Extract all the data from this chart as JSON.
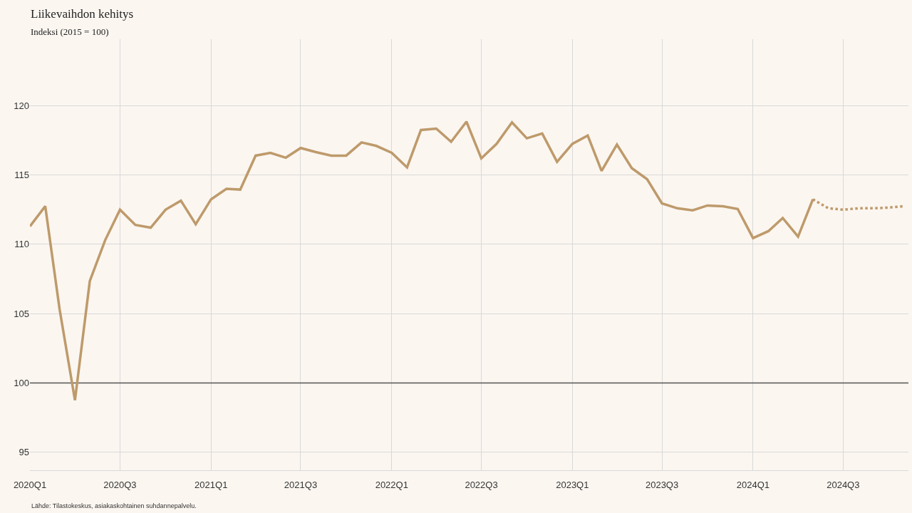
{
  "chart_data": {
    "type": "line",
    "title": "Liikevaihdon kehitys",
    "subtitle": "Indeksi (2015 = 100)",
    "annotations": [
      "Lähde: Tilastokeskus, asiakaskohtainen suhdannepalvelu."
    ],
    "x": [
      "2020-01",
      "2020-02",
      "2020-03",
      "2020-04",
      "2020-05",
      "2020-06",
      "2020-07",
      "2020-08",
      "2020-09",
      "2020-10",
      "2020-11",
      "2020-12",
      "2021-01",
      "2021-02",
      "2021-03",
      "2021-04",
      "2021-05",
      "2021-06",
      "2021-07",
      "2021-08",
      "2021-09",
      "2021-10",
      "2021-11",
      "2021-12",
      "2022-01",
      "2022-02",
      "2022-03",
      "2022-04",
      "2022-05",
      "2022-06",
      "2022-07",
      "2022-08",
      "2022-09",
      "2022-10",
      "2022-11",
      "2022-12",
      "2023-01",
      "2023-02",
      "2023-03",
      "2023-04",
      "2023-05",
      "2023-06",
      "2023-07",
      "2023-08",
      "2023-09",
      "2023-10",
      "2023-11",
      "2023-12",
      "2024-01",
      "2024-02",
      "2024-03",
      "2024-04",
      "2024-05"
    ],
    "series": [
      {
        "color": "#be9a6b",
        "line_style": "solid",
        "values": [
          111.3,
          112.75,
          105.3,
          98.75,
          107.35,
          110.3,
          112.5,
          111.4,
          111.2,
          112.5,
          113.15,
          111.45,
          113.25,
          114.0,
          113.95,
          116.4,
          116.6,
          116.25,
          116.95,
          116.65,
          116.4,
          116.4,
          117.35,
          117.1,
          116.6,
          115.55,
          118.25,
          118.35,
          117.4,
          118.85,
          116.2,
          117.25,
          118.8,
          117.65,
          118.0,
          115.95,
          117.25,
          117.85,
          115.3,
          117.2,
          115.5,
          114.7,
          112.95,
          112.6,
          112.45,
          112.8,
          112.75,
          112.55,
          110.45,
          110.95,
          111.9,
          110.55,
          113.25
        ]
      },
      {
        "color": "#be9a6b",
        "line_style": "dotted",
        "x": [
          "2024-05",
          "2024-06",
          "2024-07",
          "2024-08",
          "2024-09",
          "2024-10",
          "2024-11"
        ],
        "values": [
          113.25,
          112.6,
          112.5,
          112.6,
          112.6,
          112.65,
          112.75
        ]
      }
    ],
    "xlim": [
      "2020-01",
      "2024-11-10"
    ],
    "xticks": [
      {
        "value": "2020-01",
        "label": "2020Q1"
      },
      {
        "value": "2020-07",
        "label": "2020Q3"
      },
      {
        "value": "2021-01",
        "label": "2021Q1"
      },
      {
        "value": "2021-07",
        "label": "2021Q3"
      },
      {
        "value": "2022-01",
        "label": "2022Q1"
      },
      {
        "value": "2022-07",
        "label": "2022Q3"
      },
      {
        "value": "2023-01",
        "label": "2023Q1"
      },
      {
        "value": "2023-07",
        "label": "2023Q3"
      },
      {
        "value": "2024-01",
        "label": "2024Q1"
      },
      {
        "value": "2024-07",
        "label": "2024Q3"
      }
    ],
    "ylim": [
      93.7,
      124.8
    ],
    "yticks": [
      95,
      100,
      105,
      110,
      115,
      120
    ],
    "ref_lines": [
      {
        "axis": "y",
        "value": 100,
        "color": "#555555"
      }
    ],
    "grid": true,
    "marker": "none"
  }
}
